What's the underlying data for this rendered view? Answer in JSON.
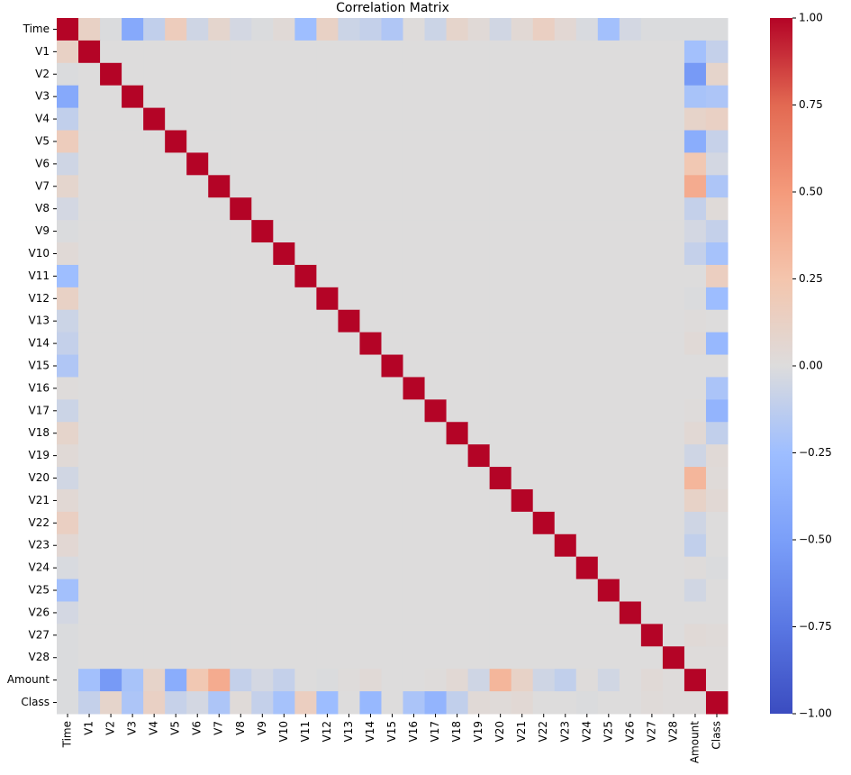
{
  "chart_data": {
    "type": "heatmap",
    "title": "Correlation Matrix",
    "colormap": "coolwarm",
    "categories": [
      "Time",
      "V1",
      "V2",
      "V3",
      "V4",
      "V5",
      "V6",
      "V7",
      "V8",
      "V9",
      "V10",
      "V11",
      "V12",
      "V13",
      "V14",
      "V15",
      "V16",
      "V17",
      "V18",
      "V19",
      "V20",
      "V21",
      "V22",
      "V23",
      "V24",
      "V25",
      "V26",
      "V27",
      "V28",
      "Amount",
      "Class"
    ],
    "values": [
      [
        1,
        0.12,
        -0.01,
        -0.42,
        -0.11,
        0.17,
        -0.06,
        0.08,
        -0.04,
        -0.01,
        0.03,
        -0.25,
        0.12,
        -0.07,
        -0.1,
        -0.18,
        0.01,
        -0.07,
        0.09,
        0.03,
        -0.05,
        0.04,
        0.14,
        0.05,
        -0.02,
        -0.23,
        -0.04,
        -0.01,
        -0.01,
        -0.01,
        -0.01
      ],
      [
        0.12,
        1,
        0,
        0,
        0,
        0,
        0,
        0,
        0,
        0,
        0,
        0,
        0,
        0,
        0,
        0,
        0,
        0,
        0,
        0,
        0,
        0,
        0,
        0,
        0,
        0,
        0,
        0,
        0,
        -0.23,
        -0.1
      ],
      [
        -0.01,
        0,
        1,
        0,
        0,
        0,
        0,
        0,
        0,
        0,
        0,
        0,
        0,
        0,
        0,
        0,
        0,
        0,
        0,
        0,
        0,
        0,
        0,
        0,
        0,
        0,
        0,
        0,
        0,
        -0.53,
        0.09
      ],
      [
        -0.42,
        0,
        0,
        1,
        0,
        0,
        0,
        0,
        0,
        0,
        0,
        0,
        0,
        0,
        0,
        0,
        0,
        0,
        0,
        0,
        0,
        0,
        0,
        0,
        0,
        0,
        0,
        0,
        0,
        -0.21,
        -0.19
      ],
      [
        -0.11,
        0,
        0,
        0,
        1,
        0,
        0,
        0,
        0,
        0,
        0,
        0,
        0,
        0,
        0,
        0,
        0,
        0,
        0,
        0,
        0,
        0,
        0,
        0,
        0,
        0,
        0,
        0,
        0,
        0.1,
        0.13
      ],
      [
        0.17,
        0,
        0,
        0,
        0,
        1,
        0,
        0,
        0,
        0,
        0,
        0,
        0,
        0,
        0,
        0,
        0,
        0,
        0,
        0,
        0,
        0,
        0,
        0,
        0,
        0,
        0,
        0,
        0,
        -0.39,
        -0.09
      ],
      [
        -0.06,
        0,
        0,
        0,
        0,
        0,
        1,
        0,
        0,
        0,
        0,
        0,
        0,
        0,
        0,
        0,
        0,
        0,
        0,
        0,
        0,
        0,
        0,
        0,
        0,
        0,
        0,
        0,
        0,
        0.22,
        -0.04
      ],
      [
        0.08,
        0,
        0,
        0,
        0,
        0,
        0,
        1,
        0,
        0,
        0,
        0,
        0,
        0,
        0,
        0,
        0,
        0,
        0,
        0,
        0,
        0,
        0,
        0,
        0,
        0,
        0,
        0,
        0,
        0.4,
        -0.19
      ],
      [
        -0.04,
        0,
        0,
        0,
        0,
        0,
        0,
        0,
        1,
        0,
        0,
        0,
        0,
        0,
        0,
        0,
        0,
        0,
        0,
        0,
        0,
        0,
        0,
        0,
        0,
        0,
        0,
        0,
        0,
        -0.1,
        0.02
      ],
      [
        -0.01,
        0,
        0,
        0,
        0,
        0,
        0,
        0,
        0,
        1,
        0,
        0,
        0,
        0,
        0,
        0,
        0,
        0,
        0,
        0,
        0,
        0,
        0,
        0,
        0,
        0,
        0,
        0,
        0,
        -0.04,
        -0.1
      ],
      [
        0.03,
        0,
        0,
        0,
        0,
        0,
        0,
        0,
        0,
        0,
        1,
        0,
        0,
        0,
        0,
        0,
        0,
        0,
        0,
        0,
        0,
        0,
        0,
        0,
        0,
        0,
        0,
        0,
        0,
        -0.1,
        -0.22
      ],
      [
        -0.25,
        0,
        0,
        0,
        0,
        0,
        0,
        0,
        0,
        0,
        0,
        1,
        0,
        0,
        0,
        0,
        0,
        0,
        0,
        0,
        0,
        0,
        0,
        0,
        0,
        0,
        0,
        0,
        0,
        0,
        0.15
      ],
      [
        0.12,
        0,
        0,
        0,
        0,
        0,
        0,
        0,
        0,
        0,
        0,
        0,
        1,
        0,
        0,
        0,
        0,
        0,
        0,
        0,
        0,
        0,
        0,
        0,
        0,
        0,
        0,
        0,
        0,
        -0.01,
        -0.26
      ],
      [
        -0.07,
        0,
        0,
        0,
        0,
        0,
        0,
        0,
        0,
        0,
        0,
        0,
        0,
        1,
        0,
        0,
        0,
        0,
        0,
        0,
        0,
        0,
        0,
        0,
        0,
        0,
        0,
        0,
        0,
        0.01,
        0
      ],
      [
        -0.1,
        0,
        0,
        0,
        0,
        0,
        0,
        0,
        0,
        0,
        0,
        0,
        0,
        0,
        1,
        0,
        0,
        0,
        0,
        0,
        0,
        0,
        0,
        0,
        0,
        0,
        0,
        0,
        0,
        0.03,
        -0.3
      ],
      [
        -0.18,
        0,
        0,
        0,
        0,
        0,
        0,
        0,
        0,
        0,
        0,
        0,
        0,
        0,
        0,
        1,
        0,
        0,
        0,
        0,
        0,
        0,
        0,
        0,
        0,
        0,
        0,
        0,
        0,
        0,
        0
      ],
      [
        0.01,
        0,
        0,
        0,
        0,
        0,
        0,
        0,
        0,
        0,
        0,
        0,
        0,
        0,
        0,
        0,
        1,
        0,
        0,
        0,
        0,
        0,
        0,
        0,
        0,
        0,
        0,
        0,
        0,
        0,
        -0.2
      ],
      [
        -0.07,
        0,
        0,
        0,
        0,
        0,
        0,
        0,
        0,
        0,
        0,
        0,
        0,
        0,
        0,
        0,
        0,
        1,
        0,
        0,
        0,
        0,
        0,
        0,
        0,
        0,
        0,
        0,
        0,
        0.01,
        -0.33
      ],
      [
        0.09,
        0,
        0,
        0,
        0,
        0,
        0,
        0,
        0,
        0,
        0,
        0,
        0,
        0,
        0,
        0,
        0,
        0,
        1,
        0,
        0,
        0,
        0,
        0,
        0,
        0,
        0,
        0,
        0,
        0.04,
        -0.11
      ],
      [
        0.03,
        0,
        0,
        0,
        0,
        0,
        0,
        0,
        0,
        0,
        0,
        0,
        0,
        0,
        0,
        0,
        0,
        0,
        0,
        1,
        0,
        0,
        0,
        0,
        0,
        0,
        0,
        0,
        0,
        -0.06,
        0.03
      ],
      [
        -0.05,
        0,
        0,
        0,
        0,
        0,
        0,
        0,
        0,
        0,
        0,
        0,
        0,
        0,
        0,
        0,
        0,
        0,
        0,
        0,
        1,
        0,
        0,
        0,
        0,
        0,
        0,
        0,
        0,
        0.34,
        0.02
      ],
      [
        0.04,
        0,
        0,
        0,
        0,
        0,
        0,
        0,
        0,
        0,
        0,
        0,
        0,
        0,
        0,
        0,
        0,
        0,
        0,
        0,
        0,
        1,
        0,
        0,
        0,
        0,
        0,
        0,
        0,
        0.11,
        0.04
      ],
      [
        0.14,
        0,
        0,
        0,
        0,
        0,
        0,
        0,
        0,
        0,
        0,
        0,
        0,
        0,
        0,
        0,
        0,
        0,
        0,
        0,
        0,
        0,
        1,
        0,
        0,
        0,
        0,
        0,
        0,
        -0.06,
        0
      ],
      [
        0.05,
        0,
        0,
        0,
        0,
        0,
        0,
        0,
        0,
        0,
        0,
        0,
        0,
        0,
        0,
        0,
        0,
        0,
        0,
        0,
        0,
        0,
        0,
        1,
        0,
        0,
        0,
        0,
        0,
        -0.11,
        0
      ],
      [
        -0.02,
        0,
        0,
        0,
        0,
        0,
        0,
        0,
        0,
        0,
        0,
        0,
        0,
        0,
        0,
        0,
        0,
        0,
        0,
        0,
        0,
        0,
        0,
        0,
        1,
        0,
        0,
        0,
        0,
        0.01,
        -0.01
      ],
      [
        -0.23,
        0,
        0,
        0,
        0,
        0,
        0,
        0,
        0,
        0,
        0,
        0,
        0,
        0,
        0,
        0,
        0,
        0,
        0,
        0,
        0,
        0,
        0,
        0,
        0,
        1,
        0,
        0,
        0,
        -0.05,
        0
      ],
      [
        -0.04,
        0,
        0,
        0,
        0,
        0,
        0,
        0,
        0,
        0,
        0,
        0,
        0,
        0,
        0,
        0,
        0,
        0,
        0,
        0,
        0,
        0,
        0,
        0,
        0,
        0,
        1,
        0,
        0,
        0,
        0
      ],
      [
        -0.01,
        0,
        0,
        0,
        0,
        0,
        0,
        0,
        0,
        0,
        0,
        0,
        0,
        0,
        0,
        0,
        0,
        0,
        0,
        0,
        0,
        0,
        0,
        0,
        0,
        0,
        0,
        1,
        0,
        0.03,
        0.02
      ],
      [
        -0.01,
        0,
        0,
        0,
        0,
        0,
        0,
        0,
        0,
        0,
        0,
        0,
        0,
        0,
        0,
        0,
        0,
        0,
        0,
        0,
        0,
        0,
        0,
        0,
        0,
        0,
        0,
        0,
        1,
        0.01,
        0.01
      ],
      [
        -0.01,
        -0.23,
        -0.53,
        -0.21,
        0.1,
        -0.39,
        0.22,
        0.4,
        -0.1,
        -0.04,
        -0.1,
        0,
        -0.01,
        0.01,
        0.03,
        0,
        0,
        0.01,
        0.04,
        -0.06,
        0.34,
        0.11,
        -0.06,
        -0.11,
        0.01,
        -0.05,
        0,
        0.03,
        0.01,
        1,
        0.01
      ],
      [
        -0.01,
        -0.1,
        0.09,
        -0.19,
        0.13,
        -0.09,
        -0.04,
        -0.19,
        0.02,
        -0.1,
        -0.22,
        0.15,
        -0.26,
        0,
        -0.3,
        0,
        -0.2,
        -0.33,
        -0.11,
        0.03,
        0.02,
        0.04,
        0,
        0,
        -0.01,
        0,
        0,
        0.02,
        0.01,
        0.01,
        1
      ]
    ],
    "clim": [
      -1,
      1
    ],
    "cbar_ticks": [
      {
        "value": -1,
        "label": "−1.00"
      },
      {
        "value": -0.75,
        "label": "−0.75"
      },
      {
        "value": -0.5,
        "label": "−0.50"
      },
      {
        "value": -0.25,
        "label": "−0.25"
      },
      {
        "value": 0,
        "label": "0.00"
      },
      {
        "value": 0.25,
        "label": "0.25"
      },
      {
        "value": 0.5,
        "label": "0.50"
      },
      {
        "value": 0.75,
        "label": "0.75"
      },
      {
        "value": 1,
        "label": "1.00"
      }
    ]
  }
}
